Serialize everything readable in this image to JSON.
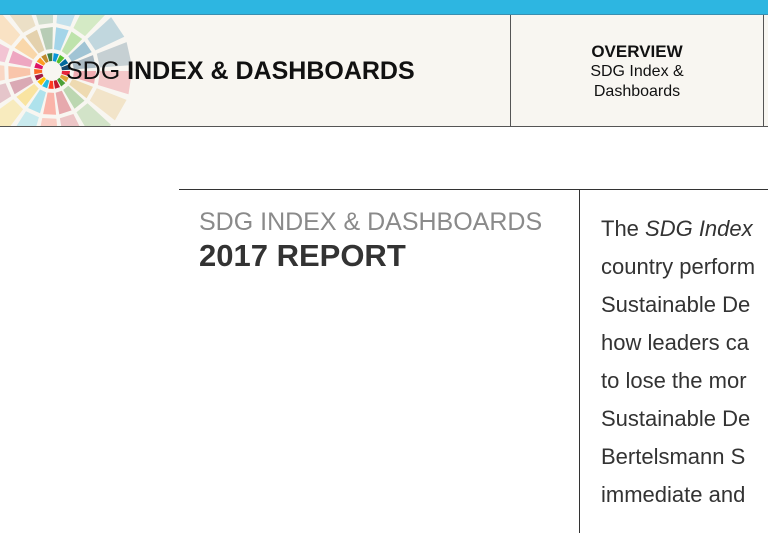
{
  "header": {
    "logo_light": "SDG",
    "logo_bold": "INDEX & DASHBOARDS",
    "nav": [
      {
        "title": "OVERVIEW",
        "subtitle_lines": [
          "SDG Index &",
          "Dashboards"
        ]
      }
    ]
  },
  "report": {
    "kicker": "SDG INDEX & DASHBOARDS",
    "title": "2017 REPORT"
  },
  "intro": {
    "first_line_start": "The ",
    "first_line_italic": "SDG Index",
    "lines": [
      "country perform",
      "Sustainable De",
      "how leaders ca",
      "to lose the mor",
      "Sustainable De",
      "Bertelsmann S",
      "immediate and"
    ]
  }
}
